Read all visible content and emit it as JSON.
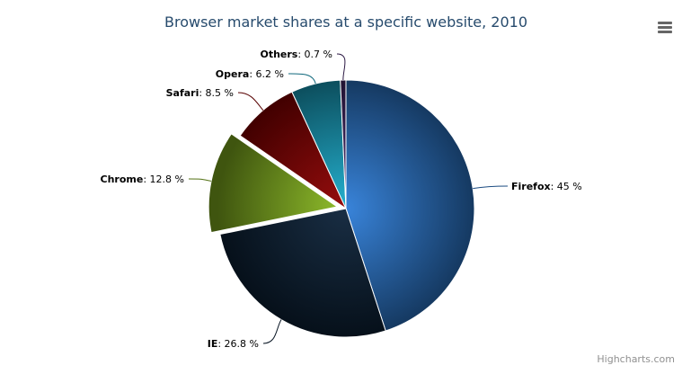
{
  "chart_data": {
    "type": "pie",
    "title": "Browser market shares at a specific website, 2010",
    "unit": "%",
    "slices": [
      {
        "name": "Firefox",
        "value": 45.0,
        "color": "#2f7ed8",
        "sliced": false
      },
      {
        "name": "IE",
        "value": 26.8,
        "color": "#0d233a",
        "sliced": false
      },
      {
        "name": "Chrome",
        "value": 12.8,
        "color": "#8bbc21",
        "sliced": true
      },
      {
        "name": "Safari",
        "value": 8.5,
        "color": "#910000",
        "sliced": false
      },
      {
        "name": "Opera",
        "value": 6.2,
        "color": "#1aadce",
        "sliced": false
      },
      {
        "name": "Others",
        "value": 0.7,
        "color": "#492970",
        "sliced": false
      }
    ],
    "labels": [
      "Firefox: 45 %",
      "IE: 26.8 %",
      "Chrome: 12.8 %",
      "Safari: 8.5 %",
      "Opera: 6.2 %",
      "Others: 0.7 %"
    ]
  },
  "credits": "Highcharts.com",
  "menu_icon": "hamburger-menu-icon"
}
